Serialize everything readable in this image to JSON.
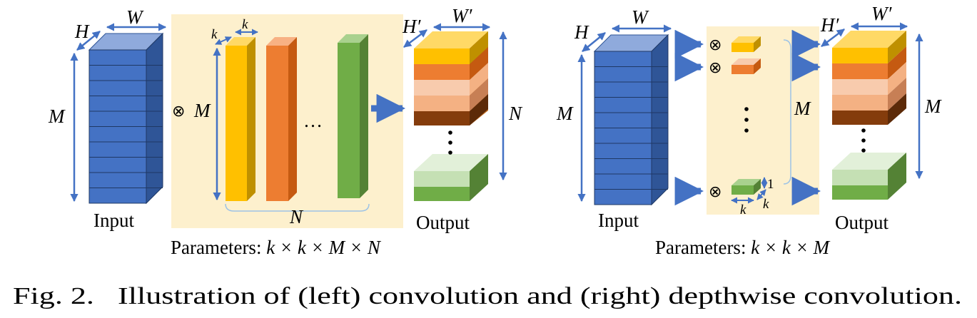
{
  "left": {
    "input_label": "Input",
    "output_label": "Output",
    "dim_W": "W",
    "dim_H": "H",
    "dim_M": "M",
    "dim_k1": "k",
    "dim_k2": "k",
    "dim_M_filter": "M",
    "dim_N_brace": "N",
    "dim_Wp": "W′",
    "dim_Hp": "H′",
    "dim_N_out": "N",
    "otimes": "⊗",
    "ellipsis": "…",
    "params_prefix": "Parameters: ",
    "params_formula": "k × k × M × N"
  },
  "right": {
    "input_label": "Input",
    "output_label": "Output",
    "dim_W": "W",
    "dim_H": "H",
    "dim_M": "M",
    "dim_M_brace": "M",
    "dim_Wp": "W′",
    "dim_Hp": "H′",
    "dim_M_out": "M",
    "otimes": "⊗",
    "dim_k1": "k",
    "dim_k2": "k",
    "dim_one": "1",
    "params_prefix": "Parameters:  ",
    "params_formula": "k × k × M"
  },
  "caption": "Fig. 2.   Illustration of (left) convolution and (right) depthwise convolution.",
  "colors": {
    "panel": "#fdf0cd",
    "blue_front": "#4472c4",
    "blue_top": "#8faadc",
    "blue_side": "#2f5597",
    "arrow": "#4472c4",
    "yellow": "#ffc000",
    "orange": "#ed7d31",
    "light_orange": "#f4b183",
    "peach": "#f8cbad",
    "brown": "#843c0c",
    "green": "#70ad47",
    "light_green": "#c5e0b4",
    "pale_green": "#e2f0d9"
  }
}
